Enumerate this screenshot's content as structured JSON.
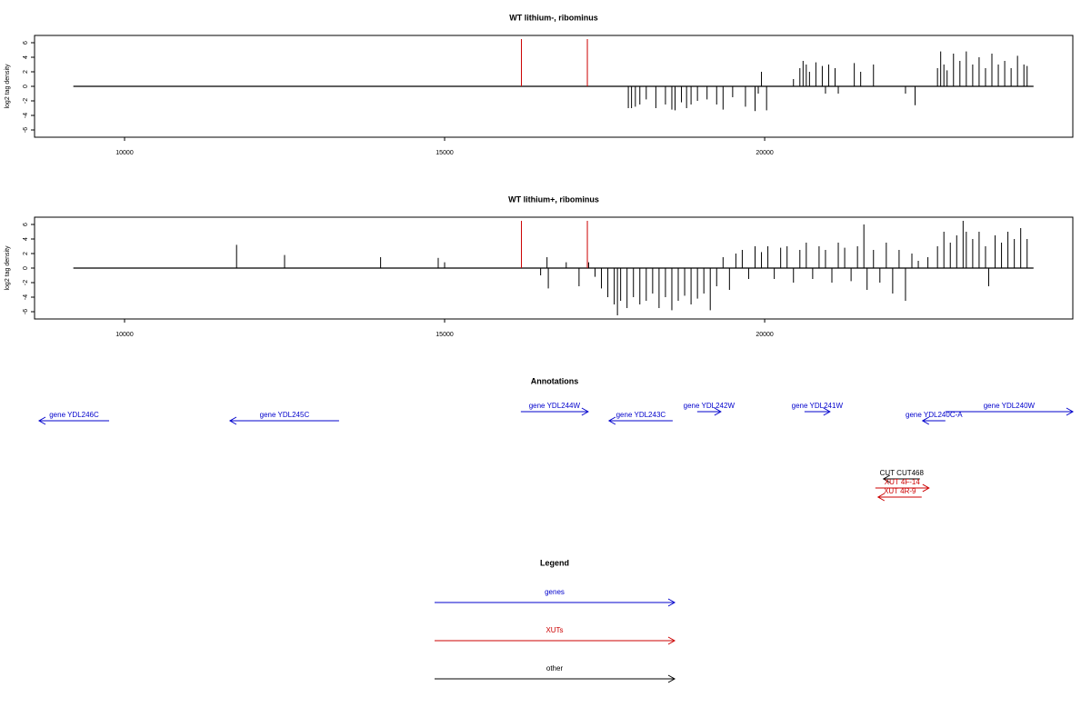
{
  "chart_data": [
    {
      "type": "bar",
      "title": "WT lithium-, ribominus",
      "ylabel": "log2 tag density",
      "xlim": [
        8594,
        24814
      ],
      "ylim": [
        -7,
        7
      ],
      "xticks": [
        10000,
        15000,
        20000
      ],
      "yticks": [
        -6,
        -4,
        -2,
        0,
        2,
        4,
        6
      ],
      "span": [
        9200,
        24200
      ],
      "series": [
        {
          "color": "#000000",
          "x": [
            17870,
            17920,
            17980,
            18050,
            18150,
            18300,
            18450,
            18550,
            18600,
            18700,
            18780,
            18850,
            18950,
            19100,
            19250,
            19350,
            19500,
            19700,
            19850,
            19900,
            19950,
            20030,
            20450,
            20550,
            20600,
            20650,
            20700,
            20800,
            20900,
            20950,
            21000,
            21100,
            21150,
            21400,
            21500,
            21700,
            22200,
            22350,
            22700,
            22750,
            22800,
            22850,
            22950,
            23050,
            23150,
            23250,
            23350,
            23450,
            23550,
            23650,
            23750,
            23850,
            23950,
            24050,
            24100
          ],
          "values": [
            -3,
            -3,
            -2.8,
            -2.5,
            -1.8,
            -3,
            -2.5,
            -3.2,
            -3.3,
            -2.2,
            -3,
            -2.5,
            -2,
            -1.8,
            -2.5,
            -3.2,
            -1.5,
            -2.8,
            -3.4,
            -1,
            2,
            -3.3,
            1,
            2.5,
            3.5,
            3,
            2,
            3.3,
            2.8,
            -1,
            3,
            2.5,
            -1,
            3.2,
            2,
            3,
            -1,
            -2.6,
            2.5,
            4.8,
            3,
            2.2,
            4.5,
            3.5,
            4.8,
            3,
            4,
            2.5,
            4.5,
            3,
            3.5,
            2.5,
            4.2,
            3,
            2.8
          ]
        },
        {
          "color": "#cc0000",
          "x": [
            16200,
            17230
          ],
          "values": [
            6.5,
            6.5
          ]
        }
      ]
    },
    {
      "type": "bar",
      "title": "WT lithium+, ribominus",
      "ylabel": "log2 tag density",
      "xlim": [
        8594,
        24814
      ],
      "ylim": [
        -7,
        7
      ],
      "xticks": [
        10000,
        15000,
        20000
      ],
      "yticks": [
        -6,
        -4,
        -2,
        0,
        2,
        4,
        6
      ],
      "span": [
        9200,
        24200
      ],
      "series": [
        {
          "color": "#000000",
          "x": [
            11750,
            12500,
            14000,
            14900,
            15000,
            16500,
            16600,
            16620,
            16900,
            17100,
            17250,
            17350,
            17450,
            17550,
            17650,
            17700,
            17750,
            17850,
            17950,
            18050,
            18150,
            18250,
            18350,
            18450,
            18550,
            18650,
            18750,
            18850,
            18950,
            19050,
            19150,
            19250,
            19350,
            19450,
            19550,
            19650,
            19750,
            19850,
            19950,
            20050,
            20150,
            20250,
            20350,
            20450,
            20550,
            20650,
            20750,
            20850,
            20950,
            21050,
            21150,
            21250,
            21350,
            21450,
            21550,
            21600,
            21700,
            21800,
            21900,
            22000,
            22100,
            22200,
            22300,
            22400,
            22550,
            22700,
            22800,
            22900,
            23000,
            23100,
            23150,
            23250,
            23350,
            23450,
            23500,
            23600,
            23700,
            23800,
            23900,
            24000,
            24100
          ],
          "values": [
            3.2,
            1.8,
            1.5,
            1.4,
            0.8,
            -1,
            1.5,
            -2.8,
            0.8,
            -2.5,
            0.8,
            -1.2,
            -2.8,
            -4,
            -5,
            -6.5,
            -4.5,
            -5.5,
            -4,
            -5,
            -4.5,
            -3.5,
            -5.5,
            -4,
            -5.8,
            -4.5,
            -3.8,
            -5,
            -4.2,
            -3.5,
            -5.8,
            -2.5,
            1.5,
            -3,
            2,
            2.5,
            -1.5,
            3,
            2.2,
            3,
            -1.5,
            2.8,
            3,
            -2,
            2.5,
            3.5,
            -1.5,
            3,
            2.5,
            -2,
            3.5,
            2.8,
            -1.8,
            3,
            6,
            -3,
            2.5,
            -2,
            3.5,
            -3.5,
            2.5,
            -4.5,
            2,
            1,
            1.5,
            3,
            5,
            3.5,
            4.5,
            6.5,
            5,
            4,
            5,
            3,
            -2.5,
            4.5,
            3.5,
            5,
            4,
            5.5,
            4
          ]
        },
        {
          "color": "#cc0000",
          "x": [
            16200,
            17230
          ],
          "values": [
            6.5,
            6.5
          ]
        }
      ]
    }
  ],
  "annotations": {
    "title": "Annotations",
    "features": [
      {
        "label": "gene YDL246C",
        "start": 8665,
        "end": 9759,
        "strand": "-",
        "color": "#0000cc"
      },
      {
        "label": "gene YDL245C",
        "start": 11647,
        "end": 13351,
        "strand": "-",
        "color": "#0000cc"
      },
      {
        "label": "gene YDL244W",
        "start": 16191,
        "end": 17242,
        "strand": "+",
        "color": "#0000cc"
      },
      {
        "label": "gene YDL243C",
        "start": 17569,
        "end": 18563,
        "strand": "-",
        "color": "#0000cc"
      },
      {
        "label": "gene YDL242W",
        "start": 18946,
        "end": 19315,
        "strand": "+",
        "color": "#0000cc"
      },
      {
        "label": "gene YDL241W",
        "start": 20622,
        "end": 21019,
        "strand": "+",
        "color": "#0000cc"
      },
      {
        "label": "gene YDL240C-A",
        "start": 22468,
        "end": 22823,
        "strand": "-",
        "color": "#0000cc"
      },
      {
        "label": "gene YDL240W",
        "start": 22823,
        "end": 24814,
        "strand": "+",
        "color": "#0000cc"
      },
      {
        "label": "CUT CUT468",
        "start": 21857,
        "end": 22425,
        "strand": "-",
        "color": "#000000"
      },
      {
        "label": "XUT 4F-14",
        "start": 21729,
        "end": 22567,
        "strand": "+",
        "color": "#cc0000"
      },
      {
        "label": "XUT 4R-9",
        "start": 21772,
        "end": 22453,
        "strand": "-",
        "color": "#cc0000"
      }
    ]
  },
  "legend": {
    "title": "Legend",
    "items": [
      {
        "label": "genes",
        "color": "#0000cc"
      },
      {
        "label": "XUTs",
        "color": "#cc0000"
      },
      {
        "label": "other",
        "color": "#000000"
      }
    ]
  }
}
